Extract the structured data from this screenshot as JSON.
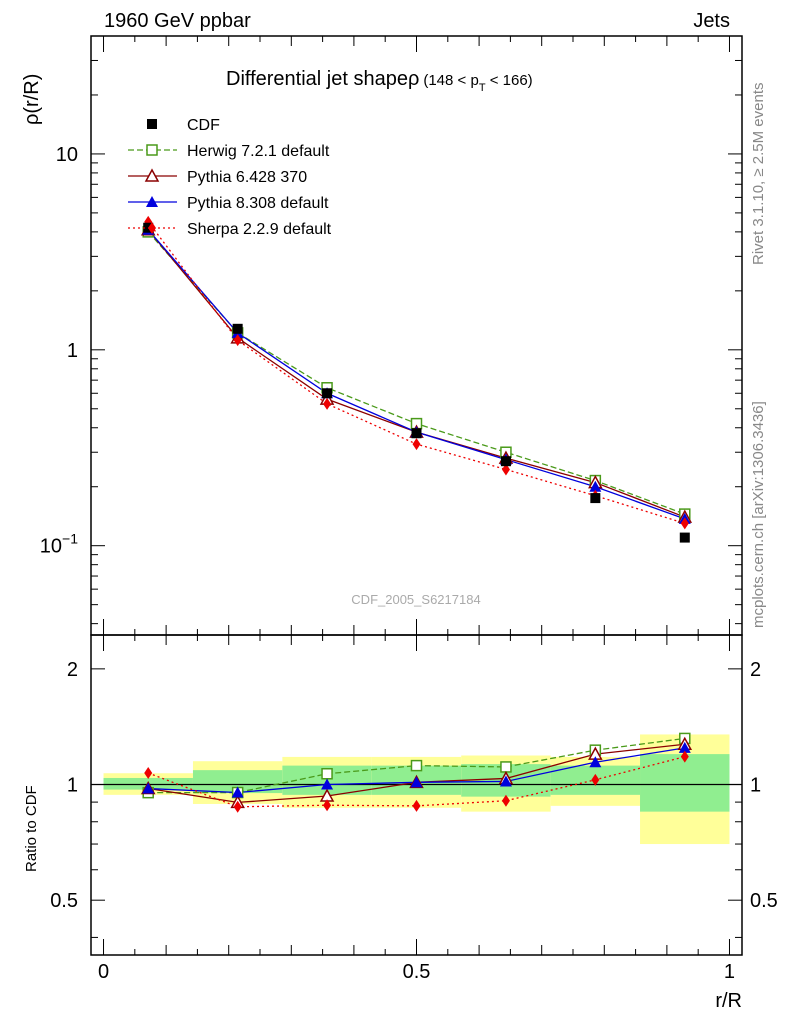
{
  "header": {
    "left": "1960 GeV ppbar",
    "right": "Jets"
  },
  "side_labels": {
    "rivet": "Rivet 3.1.10, ≥ 2.5M events",
    "mcplots": "mcplots.cern.ch [arXiv:1306.3436]"
  },
  "watermark": "CDF_2005_S6217184",
  "chart_data": {
    "type": "line",
    "title": "Differential jet shapeρ",
    "title_range": {
      "prefix": "(148 < p",
      "sub": "T",
      "suffix": " < 166)"
    },
    "ylabel": "ρ(r/R)",
    "xlabel": "r/R",
    "ratio_ylabel": "Ratio to CDF",
    "x": [
      0.0714,
      0.2143,
      0.3571,
      0.5,
      0.6429,
      0.7857,
      0.9286
    ],
    "xlim": [
      -0.02,
      1.02
    ],
    "ylim": [
      0.035,
      40
    ],
    "yscale": "log",
    "y_ticks": [
      {
        "value": 10,
        "base": "10",
        "exp": ""
      },
      {
        "value": 1,
        "base": "1",
        "exp": ""
      },
      {
        "value": 0.1,
        "base": "10",
        "exp": "−1"
      }
    ],
    "x_ticks": [
      {
        "value": 0,
        "label": "0"
      },
      {
        "value": 0.5,
        "label": "0.5"
      },
      {
        "value": 1,
        "label": "1"
      }
    ],
    "ratio_ylim": [
      0.36,
      2.45
    ],
    "ratio_yscale": "log",
    "ratio_ticks": [
      {
        "value": 2,
        "label": "2"
      },
      {
        "value": 1,
        "label": "1"
      },
      {
        "value": 0.5,
        "label": "0.5"
      }
    ],
    "data": {
      "name": "CDF",
      "values": [
        4.2,
        1.28,
        0.6,
        0.375,
        0.27,
        0.175,
        0.11
      ]
    },
    "series": [
      {
        "name": "Herwig 7.2.1 default",
        "color": "#4a9a1a",
        "marker": "open-square",
        "dash": "6,3",
        "values": [
          4.0,
          1.22,
          0.64,
          0.42,
          0.3,
          0.215,
          0.145
        ]
      },
      {
        "name": "Pythia 6.428 370",
        "color": "#8b0000",
        "marker": "open-triangle",
        "dash": "",
        "values": [
          4.1,
          1.15,
          0.56,
          0.38,
          0.28,
          0.21,
          0.14
        ]
      },
      {
        "name": "Pythia 8.308 default",
        "color": "#0000dd",
        "marker": "filled-triangle",
        "dash": "",
        "values": [
          4.1,
          1.22,
          0.6,
          0.38,
          0.275,
          0.2,
          0.137
        ]
      },
      {
        "name": "Sherpa 2.2.9 default",
        "color": "#ee0000",
        "marker": "filled-diamond",
        "dash": "2,3",
        "values": [
          4.5,
          1.12,
          0.53,
          0.33,
          0.245,
          0.18,
          0.13
        ]
      }
    ],
    "ratio_bands": [
      {
        "x0": 0.0,
        "x1": 0.1429,
        "stat": [
          0.97,
          1.04
        ],
        "total": [
          0.94,
          1.07
        ]
      },
      {
        "x0": 0.1429,
        "x1": 0.2857,
        "stat": [
          0.95,
          1.09
        ],
        "total": [
          0.89,
          1.15
        ]
      },
      {
        "x0": 0.2857,
        "x1": 0.4286,
        "stat": [
          0.94,
          1.12
        ],
        "total": [
          0.87,
          1.18
        ]
      },
      {
        "x0": 0.4286,
        "x1": 0.5714,
        "stat": [
          0.94,
          1.12
        ],
        "total": [
          0.87,
          1.18
        ]
      },
      {
        "x0": 0.5714,
        "x1": 0.7143,
        "stat": [
          0.93,
          1.13
        ],
        "total": [
          0.85,
          1.19
        ]
      },
      {
        "x0": 0.7143,
        "x1": 0.8571,
        "stat": [
          0.94,
          1.12
        ],
        "total": [
          0.88,
          1.18
        ]
      },
      {
        "x0": 0.8571,
        "x1": 1.0,
        "stat": [
          0.85,
          1.2
        ],
        "total": [
          0.7,
          1.35
        ]
      }
    ]
  }
}
